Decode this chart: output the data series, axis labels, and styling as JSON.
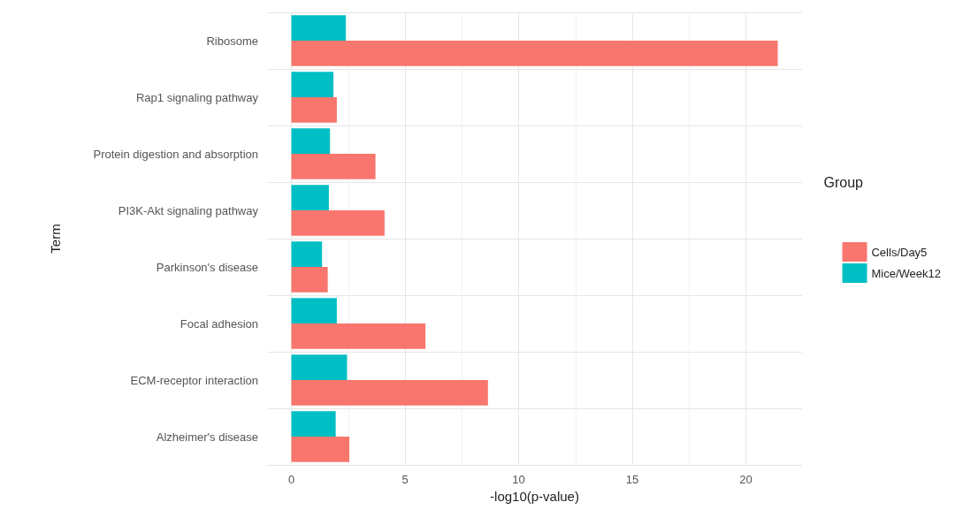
{
  "chart_data": {
    "type": "bar",
    "orientation": "horizontal",
    "xlabel": "-log10(p-value)",
    "ylabel": "Term",
    "legend_title": "Group",
    "legend": "right",
    "grid": true,
    "categories": [
      "Ribosome",
      "Rap1 signaling pathway",
      "Protein digestion and absorption",
      "PI3K-Akt signaling pathway",
      "Parkinson's disease",
      "Focal adhesion",
      "ECM-receptor interaction",
      "Alzheimer's disease"
    ],
    "series": [
      {
        "name": "Cells/Day5",
        "color": "#f8766d",
        "values": [
          21.4,
          2.0,
          3.7,
          4.1,
          1.6,
          5.9,
          8.65,
          2.55
        ]
      },
      {
        "name": "Mice/Week12",
        "color": "#00bfc4",
        "values": [
          2.4,
          1.85,
          1.7,
          1.65,
          1.35,
          2.0,
          2.45,
          1.95
        ]
      }
    ],
    "xlim": [
      -1.07,
      22.47
    ],
    "xticks": [
      0,
      5,
      10,
      15,
      20
    ]
  }
}
